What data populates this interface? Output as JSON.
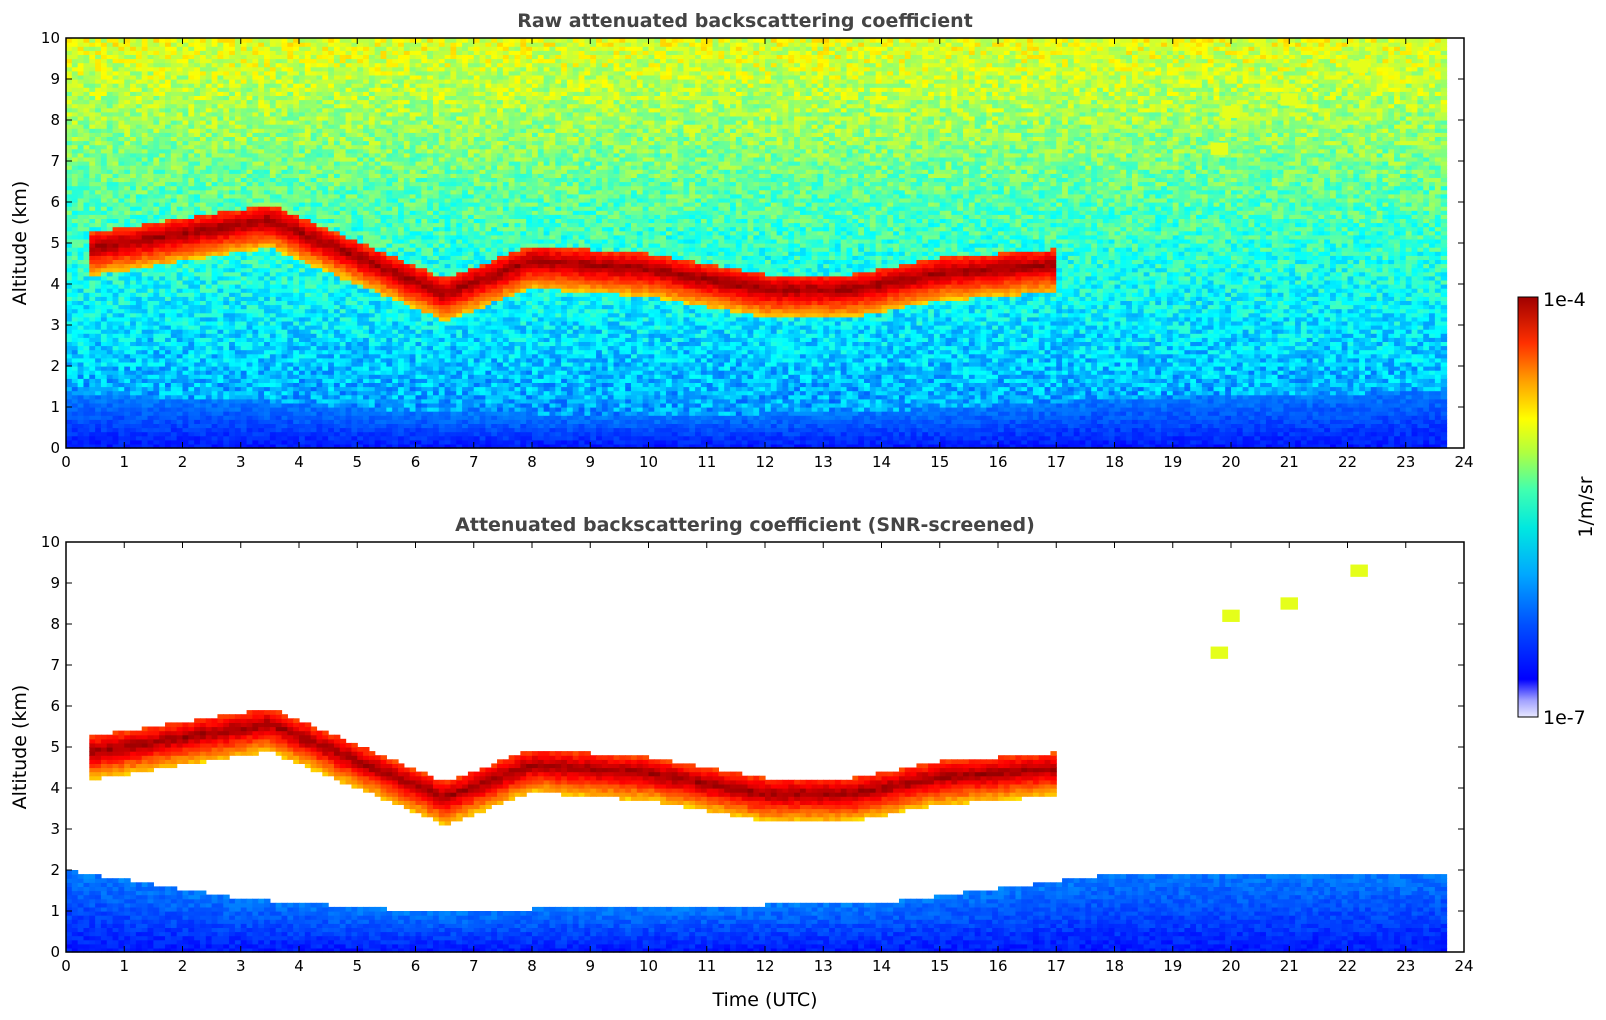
{
  "chart_data": [
    {
      "type": "heatmap",
      "title": "Raw attenuated backscattering coefficient",
      "xlabel": "",
      "ylabel": "Altitude (km)",
      "xlim": [
        0,
        24
      ],
      "ylim": [
        0,
        10
      ],
      "x_data_extent": [
        0,
        23.7
      ],
      "xticks": [
        "0",
        "1",
        "2",
        "3",
        "4",
        "5",
        "6",
        "7",
        "8",
        "9",
        "10",
        "11",
        "12",
        "13",
        "14",
        "15",
        "16",
        "17",
        "18",
        "19",
        "20",
        "21",
        "22",
        "23",
        "24"
      ],
      "yticks": [
        "0",
        "1",
        "2",
        "3",
        "4",
        "5",
        "6",
        "7",
        "8",
        "9",
        "10"
      ],
      "grid": false,
      "screened": false,
      "features": [
        {
          "label": "mid-level cloud band",
          "points": [
            [
              0.4,
              5.1
            ],
            [
              3.5,
              5.8
            ],
            [
              6.5,
              4.0
            ],
            [
              8,
              4.8
            ],
            [
              10,
              4.6
            ],
            [
              12,
              4.1
            ],
            [
              13.5,
              4.1
            ],
            [
              15,
              4.5
            ],
            [
              16.9,
              4.7
            ]
          ]
        },
        {
          "label": "boundary layer",
          "top_km": [
            [
              0,
              1.3
            ],
            [
              3,
              1.2
            ],
            [
              6,
              0.9
            ],
            [
              10,
              0.8
            ],
            [
              14,
              0.9
            ],
            [
              18,
              1.2
            ],
            [
              23.7,
              1.4
            ]
          ]
        },
        {
          "label": "high thin cloud",
          "points": [
            [
              19.8,
              7.3
            ],
            [
              20,
              8.2
            ],
            [
              21,
              8.5
            ],
            [
              22.2,
              9.3
            ]
          ]
        }
      ]
    },
    {
      "type": "heatmap",
      "title": "Attenuated backscattering coefficient (SNR-screened)",
      "xlabel": "Time (UTC)",
      "ylabel": "Altitude (km)",
      "xlim": [
        0,
        24
      ],
      "ylim": [
        0,
        10
      ],
      "x_data_extent": [
        0,
        23.7
      ],
      "xticks": [
        "0",
        "1",
        "2",
        "3",
        "4",
        "5",
        "6",
        "7",
        "8",
        "9",
        "10",
        "11",
        "12",
        "13",
        "14",
        "15",
        "16",
        "17",
        "18",
        "19",
        "20",
        "21",
        "22",
        "23",
        "24"
      ],
      "yticks": [
        "0",
        "1",
        "2",
        "3",
        "4",
        "5",
        "6",
        "7",
        "8",
        "9",
        "10"
      ],
      "grid": false,
      "screened": true,
      "features": [
        {
          "label": "mid-level cloud band",
          "points": [
            [
              0.4,
              5.1
            ],
            [
              3.5,
              5.8
            ],
            [
              6.5,
              4.0
            ],
            [
              8,
              4.8
            ],
            [
              10,
              4.6
            ],
            [
              12,
              4.1
            ],
            [
              13.5,
              4.1
            ],
            [
              15,
              4.5
            ],
            [
              16.9,
              4.7
            ]
          ]
        },
        {
          "label": "boundary layer",
          "top_km": [
            [
              0,
              2.0
            ],
            [
              3,
              1.3
            ],
            [
              6,
              1.0
            ],
            [
              10,
              1.1
            ],
            [
              14,
              1.2
            ],
            [
              18,
              1.9
            ],
            [
              23.7,
              1.9
            ]
          ]
        },
        {
          "label": "high thin cloud",
          "points": [
            [
              19.8,
              7.3
            ],
            [
              20,
              8.2
            ],
            [
              21,
              8.5
            ],
            [
              22.2,
              9.3
            ]
          ]
        }
      ]
    }
  ],
  "colorbar": {
    "max_label": "1e-4",
    "min_label": "1e-7",
    "unit_label": "1/m/sr",
    "scale": "log",
    "range": [
      1e-07,
      0.0001
    ],
    "colormap": "jet",
    "colors": [
      "#e8e8ff",
      "#b4b4ff",
      "#7070ff",
      "#0000ff",
      "#0050ff",
      "#00a0ff",
      "#00e0f0",
      "#40ffb0",
      "#a0ff50",
      "#f0f000",
      "#ffb000",
      "#ff6000",
      "#ee0000",
      "#a00000"
    ]
  }
}
